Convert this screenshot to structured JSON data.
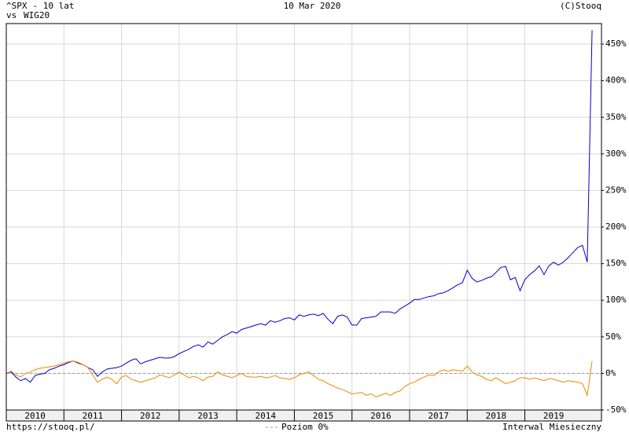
{
  "chart_data": {
    "type": "line",
    "title_prefix": "- 10 lat",
    "versus": "vs",
    "date": "10 Mar 2020",
    "copyright": "(C)Stooq",
    "source": "https://stooq.pl/",
    "reference_label": "Poziom 0%",
    "interval": "Interwal Miesieczny",
    "reference_level": 0,
    "grid": true,
    "xlim": [
      2010,
      2020.33
    ],
    "ylim": [
      -50,
      478
    ],
    "xticks": [
      2010,
      2011,
      2012,
      2013,
      2014,
      2015,
      2016,
      2017,
      2018,
      2019
    ],
    "yticks": [
      {
        "value": -50,
        "label": "-50%"
      },
      {
        "value": 0,
        "label": "0%"
      },
      {
        "value": 50,
        "label": "50%"
      },
      {
        "value": 100,
        "label": "100%"
      },
      {
        "value": 150,
        "label": "150%"
      },
      {
        "value": 200,
        "label": "200%"
      },
      {
        "value": 250,
        "label": "250%"
      },
      {
        "value": 300,
        "label": "300%"
      },
      {
        "value": 350,
        "label": "350%"
      },
      {
        "value": 400,
        "label": "400%"
      },
      {
        "value": 450,
        "label": "450%"
      }
    ],
    "x": [
      2010,
      2010.083,
      2010.167,
      2010.25,
      2010.333,
      2010.417,
      2010.5,
      2010.583,
      2010.667,
      2010.75,
      2010.833,
      2010.917,
      2011,
      2011.083,
      2011.167,
      2011.25,
      2011.333,
      2011.417,
      2011.5,
      2011.583,
      2011.667,
      2011.75,
      2011.833,
      2011.917,
      2012,
      2012.083,
      2012.167,
      2012.25,
      2012.333,
      2012.417,
      2012.5,
      2012.583,
      2012.667,
      2012.75,
      2012.833,
      2012.917,
      2013,
      2013.083,
      2013.167,
      2013.25,
      2013.333,
      2013.417,
      2013.5,
      2013.583,
      2013.667,
      2013.75,
      2013.833,
      2013.917,
      2014,
      2014.083,
      2014.167,
      2014.25,
      2014.333,
      2014.417,
      2014.5,
      2014.583,
      2014.667,
      2014.75,
      2014.833,
      2014.917,
      2015,
      2015.083,
      2015.167,
      2015.25,
      2015.333,
      2015.417,
      2015.5,
      2015.583,
      2015.667,
      2015.75,
      2015.833,
      2015.917,
      2016,
      2016.083,
      2016.167,
      2016.25,
      2016.333,
      2016.417,
      2016.5,
      2016.583,
      2016.667,
      2016.75,
      2016.833,
      2016.917,
      2017,
      2017.083,
      2017.167,
      2017.25,
      2017.333,
      2017.417,
      2017.5,
      2017.583,
      2017.667,
      2017.75,
      2017.833,
      2017.917,
      2018,
      2018.083,
      2018.167,
      2018.25,
      2018.333,
      2018.417,
      2018.5,
      2018.583,
      2018.667,
      2018.75,
      2018.833,
      2018.917,
      2019,
      2019.083,
      2019.167,
      2019.25,
      2019.333,
      2019.417,
      2019.5,
      2019.583,
      2019.667,
      2019.75,
      2019.833,
      2019.917,
      2020,
      2020.083,
      2020.167
    ],
    "series": [
      {
        "name": "^SPX",
        "color": "#0000cc",
        "values": [
          0,
          2,
          -5,
          -10,
          -7,
          -12,
          -3,
          -1,
          0,
          5,
          7,
          10,
          12,
          15,
          17,
          14,
          12,
          8,
          5,
          -4,
          2,
          6,
          7,
          8,
          10,
          14,
          18,
          20,
          13,
          16,
          18,
          20,
          22,
          21,
          21,
          23,
          27,
          30,
          33,
          37,
          39,
          36,
          43,
          40,
          45,
          50,
          53,
          57,
          55,
          60,
          62,
          64,
          66,
          68,
          66,
          72,
          70,
          72,
          75,
          76,
          73,
          80,
          78,
          80,
          81,
          79,
          82,
          74,
          68,
          78,
          80,
          77,
          66,
          66,
          75,
          76,
          77,
          78,
          84,
          84,
          84,
          82,
          88,
          92,
          96,
          101,
          101,
          103,
          105,
          106,
          109,
          110,
          113,
          117,
          121,
          124,
          141,
          130,
          125,
          127,
          130,
          132,
          138,
          145,
          146,
          128,
          131,
          113,
          128,
          135,
          140,
          147,
          135,
          147,
          152,
          148,
          152,
          158,
          165,
          172,
          175,
          152,
          469
        ]
      },
      {
        "name": "WIG20",
        "color": "#ee8800",
        "values": [
          0,
          3,
          -2,
          -5,
          0,
          2,
          5,
          7,
          8,
          9,
          10,
          12,
          14,
          16,
          17,
          15,
          12,
          8,
          -2,
          -12,
          -8,
          -5,
          -8,
          -14,
          -5,
          -3,
          -8,
          -10,
          -12,
          -10,
          -8,
          -6,
          -2,
          -4,
          -6,
          -2,
          2,
          -2,
          -6,
          -4,
          -6,
          -10,
          -5,
          -4,
          2,
          -2,
          -4,
          -6,
          -3,
          0,
          -4,
          -5,
          -5,
          -4,
          -6,
          -5,
          -3,
          -6,
          -7,
          -8,
          -6,
          -2,
          0,
          2,
          -3,
          -8,
          -10,
          -14,
          -17,
          -20,
          -22,
          -25,
          -28,
          -27,
          -26,
          -30,
          -28,
          -32,
          -30,
          -27,
          -30,
          -26,
          -24,
          -18,
          -14,
          -12,
          -8,
          -5,
          -2,
          -3,
          2,
          5,
          3,
          5,
          4,
          3,
          10,
          2,
          -2,
          -4,
          -8,
          -10,
          -6,
          -10,
          -14,
          -12,
          -10,
          -6,
          -6,
          -8,
          -6,
          -8,
          -10,
          -7,
          -8,
          -10,
          -12,
          -10,
          -11,
          -12,
          -14,
          -30,
          17
        ]
      }
    ]
  }
}
